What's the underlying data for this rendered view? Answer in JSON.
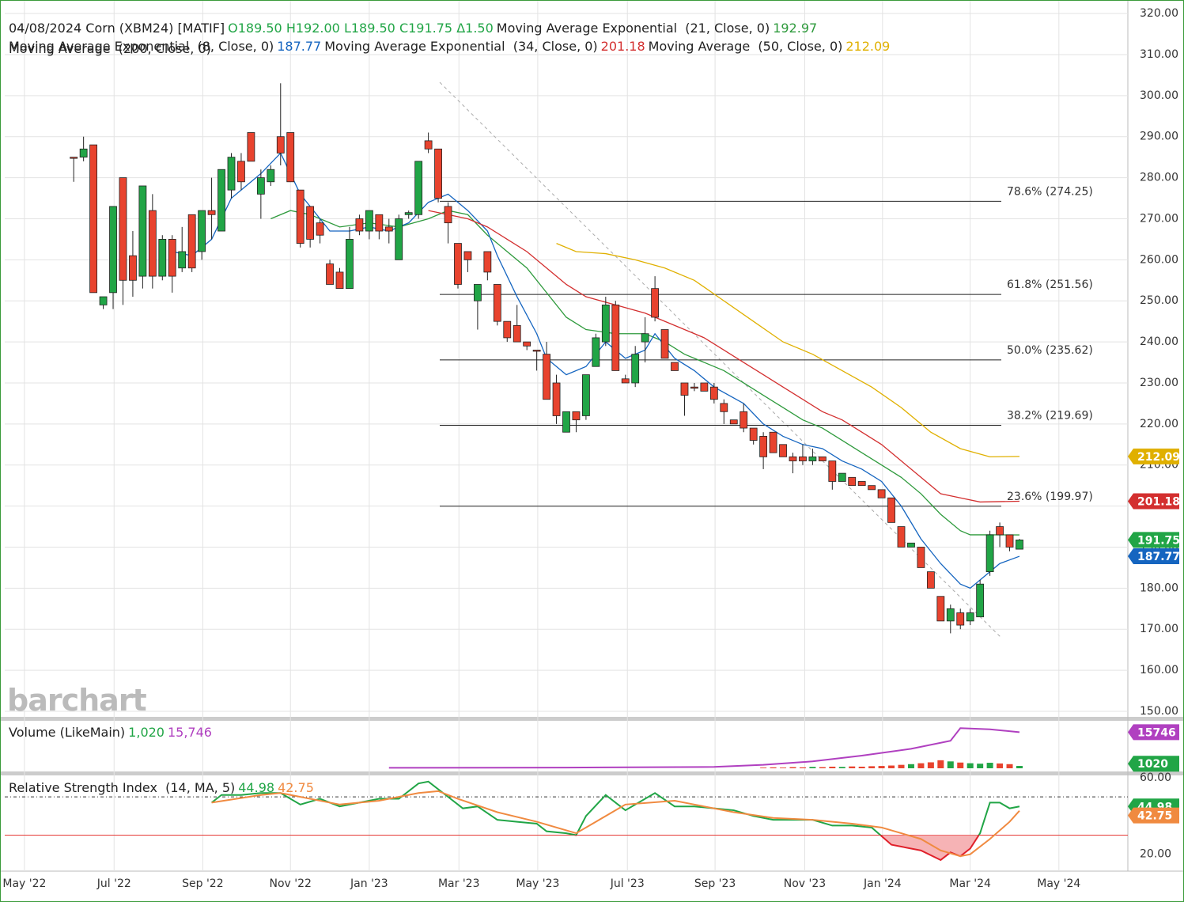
{
  "chart_data": {
    "type": "candlestick",
    "watermark": "barchart",
    "header": {
      "symbol": "04/08/2024 Corn (XBM24) [MATIF]",
      "ohlc_labels": [
        "O189.50",
        "H192.00",
        "L189.50",
        "C191.75",
        "Δ1.50"
      ],
      "extra": "Moving Average  (200, Close, 0)"
    },
    "open": [
      285,
      285,
      288,
      249,
      252,
      280,
      261,
      256,
      272,
      256,
      265,
      258,
      271,
      262,
      272,
      267,
      277,
      284,
      291,
      276,
      279,
      290,
      291,
      277,
      273,
      269,
      259,
      257,
      253,
      270,
      267,
      271,
      268,
      260,
      271,
      271,
      289,
      287,
      273,
      264,
      262,
      250,
      262,
      254,
      245,
      244,
      240,
      238,
      237,
      230,
      218,
      223,
      222,
      234,
      240,
      249,
      231,
      230,
      240,
      253,
      243,
      235,
      230,
      229,
      230,
      229,
      225,
      221,
      223,
      219,
      217,
      218,
      215,
      212,
      212,
      211,
      212,
      211,
      206,
      207,
      206,
      205,
      204,
      202,
      195,
      190,
      190,
      184,
      178,
      172,
      174,
      172,
      173,
      184,
      195,
      193,
      189.5
    ],
    "high": [
      285,
      290,
      288,
      251,
      273,
      280,
      267,
      278,
      276,
      266,
      266,
      268,
      271,
      272,
      280,
      282,
      286,
      286,
      291,
      282,
      283,
      303,
      291,
      277,
      273,
      270,
      260,
      258,
      268,
      271,
      272,
      271,
      270,
      271,
      272,
      284,
      291,
      287,
      274,
      264,
      262,
      254,
      262,
      254,
      245,
      249,
      240,
      238,
      240,
      232,
      223,
      223,
      232,
      242,
      251,
      250,
      232,
      239,
      246,
      256,
      243,
      235,
      230,
      230,
      230,
      230,
      226,
      221,
      225,
      219,
      218,
      218,
      215,
      213,
      215,
      214,
      212,
      211,
      208,
      207,
      206,
      205,
      204,
      202,
      195,
      191,
      190,
      184,
      178,
      176,
      175,
      175,
      182,
      194,
      196,
      193,
      192
    ],
    "low": [
      279,
      284,
      252,
      248,
      248,
      249,
      251,
      253,
      253,
      255,
      252,
      257,
      257,
      260,
      265,
      267,
      275,
      277,
      284,
      270,
      278,
      283,
      279,
      263,
      263,
      264,
      254,
      253,
      253,
      266,
      265,
      265,
      264,
      260,
      270,
      270,
      286,
      274,
      264,
      253,
      257,
      243,
      255,
      244,
      240,
      240,
      238,
      233,
      226,
      220,
      218,
      218,
      221,
      234,
      239,
      233,
      230,
      229,
      235,
      245,
      236,
      233,
      222,
      228,
      228,
      225,
      220,
      220,
      218,
      215,
      209,
      213,
      212,
      208,
      210,
      210,
      211,
      204,
      206,
      205,
      205,
      204,
      202,
      196,
      190,
      190,
      185,
      180,
      172,
      169,
      170,
      171,
      173,
      183,
      190,
      189,
      189.5
    ],
    "close": [
      285,
      287,
      252,
      251,
      273,
      255,
      255,
      278,
      256,
      265,
      256,
      262,
      258,
      272,
      271,
      282,
      285,
      279,
      284,
      280,
      282,
      286,
      279,
      264,
      265,
      266,
      254,
      253,
      265,
      267,
      272,
      267,
      267,
      270,
      271.5,
      284,
      287,
      275,
      269,
      254,
      260,
      254,
      257,
      245,
      241,
      240,
      239,
      238,
      226,
      222,
      223,
      221,
      232,
      241,
      249,
      233,
      230,
      237,
      242,
      246,
      236,
      233,
      227,
      229,
      228,
      226,
      223,
      220,
      219,
      216,
      212,
      213,
      212,
      211,
      211,
      212,
      211,
      206,
      208,
      205,
      205,
      204,
      202,
      196,
      190,
      191,
      185,
      180,
      172,
      175,
      171,
      174,
      181,
      193,
      193,
      190,
      191.75
    ],
    "up_color": "#21a546",
    "down_color": "#e8432e",
    "xlim": [
      -7,
      107
    ],
    "xticks": [
      {
        "value": -5,
        "label": "May '22"
      },
      {
        "value": 4.1,
        "label": "Jul '22"
      },
      {
        "value": 13.1,
        "label": "Sep '22"
      },
      {
        "value": 22,
        "label": "Nov '22"
      },
      {
        "value": 30,
        "label": "Jan '23"
      },
      {
        "value": 39.1,
        "label": "Mar '23"
      },
      {
        "value": 47.1,
        "label": "May '23"
      },
      {
        "value": 56.2,
        "label": "Jul '23"
      },
      {
        "value": 65.1,
        "label": "Sep '23"
      },
      {
        "value": 74.2,
        "label": "Nov '23"
      },
      {
        "value": 82.1,
        "label": "Jan '24"
      },
      {
        "value": 91,
        "label": "Mar '24"
      },
      {
        "value": 100,
        "label": "May '24"
      }
    ],
    "ylim": [
      148.65,
      323.1
    ],
    "yticks": [
      {
        "value": 150,
        "label": "150.00"
      },
      {
        "value": 160,
        "label": "160.00"
      },
      {
        "value": 170,
        "label": "170.00"
      },
      {
        "value": 180,
        "label": "180.00"
      },
      {
        "value": 190,
        "label": "190.00"
      },
      {
        "value": 200,
        "label": "200.00"
      },
      {
        "value": 210,
        "label": "210.00"
      },
      {
        "value": 220,
        "label": "220.00"
      },
      {
        "value": 230,
        "label": "230.00"
      },
      {
        "value": 240,
        "label": "240.00"
      },
      {
        "value": 250,
        "label": "250.00"
      },
      {
        "value": 260,
        "label": "260.00"
      },
      {
        "value": 270,
        "label": "270.00"
      },
      {
        "value": 280,
        "label": "280.00"
      },
      {
        "value": 290,
        "label": "290.00"
      },
      {
        "value": 300,
        "label": "300.00"
      },
      {
        "value": 310,
        "label": "310.00"
      },
      {
        "value": 320,
        "label": "320.00"
      }
    ],
    "grid": true,
    "fib_levels": [
      {
        "label": "78.6% (274.25)",
        "value": 274.25
      },
      {
        "label": "61.8% (251.56)",
        "value": 251.56
      },
      {
        "label": "50.0% (235.62)",
        "value": 235.62
      },
      {
        "label": "38.2% (219.69)",
        "value": 219.69
      },
      {
        "label": "23.6% (199.97)",
        "value": 199.97
      }
    ],
    "series": [
      {
        "name": "Moving Average Exponential  (21, Close, 0)",
        "color": "#2e9a3c",
        "x": [
          20,
          22,
          24,
          27,
          30,
          33,
          36,
          38,
          40,
          42,
          44,
          46,
          48,
          50,
          52,
          55,
          58,
          60,
          62,
          64,
          66,
          68,
          70,
          72,
          74,
          76,
          78,
          80,
          82,
          84,
          86,
          88,
          90,
          91,
          93,
          96
        ],
        "values": [
          270,
          272,
          271,
          268,
          269,
          268,
          270,
          272,
          271,
          266,
          262,
          258,
          252,
          246,
          243,
          242,
          242,
          240,
          237,
          235,
          233,
          230,
          227,
          224,
          221,
          219,
          216,
          213,
          210,
          207,
          203,
          198,
          194,
          193,
          193,
          192.97
        ]
      },
      {
        "name": "Moving Average Exponential  (8, Close, 0)",
        "color": "#1565c0",
        "x": [
          10,
          12,
          14,
          16,
          19,
          21,
          23,
          26,
          28,
          30,
          32,
          34,
          36,
          38,
          40,
          42,
          43,
          45,
          47,
          48,
          50,
          52,
          54,
          56,
          58,
          59,
          61,
          63,
          65,
          68,
          70,
          72,
          74,
          76,
          78,
          80,
          82,
          84,
          86,
          88,
          90,
          91,
          92,
          94,
          96
        ],
        "values": [
          262,
          261,
          265,
          275,
          281,
          286,
          276,
          267,
          267,
          268,
          267,
          269,
          274,
          276,
          272,
          267,
          261,
          251,
          242,
          236,
          232,
          234,
          240,
          236,
          238,
          242,
          236,
          233,
          229,
          225,
          220,
          217,
          215,
          214,
          211,
          209,
          206,
          200,
          192,
          186,
          181,
          180,
          182,
          186,
          187.77
        ]
      },
      {
        "name": "Moving Average Exponential  (34, Close, 0)",
        "color": "#d32f2f",
        "x": [
          36,
          38,
          40,
          42,
          44,
          46,
          48,
          50,
          52,
          55,
          58,
          60,
          62,
          64,
          66,
          68,
          70,
          72,
          74,
          76,
          78,
          80,
          82,
          84,
          86,
          88,
          90,
          92,
          96
        ],
        "values": [
          272,
          271,
          270,
          268,
          265,
          262,
          258,
          254,
          251,
          249,
          247,
          245,
          243,
          241,
          238,
          235,
          232,
          229,
          226,
          223,
          221,
          218,
          215,
          211,
          207,
          203,
          202,
          201,
          201.18
        ]
      },
      {
        "name": "Moving Average  (50, Close, 0)",
        "color": "#e0b000",
        "x": [
          49,
          51,
          54,
          57,
          60,
          63,
          66,
          69,
          72,
          75,
          78,
          81,
          84,
          87,
          90,
          93,
          96
        ],
        "values": [
          264,
          262,
          261.5,
          260,
          258,
          255,
          250,
          245,
          240,
          237,
          233,
          229,
          224,
          218,
          214,
          212,
          212.09
        ]
      }
    ],
    "volume": {
      "title": "Volume (LikeMain)",
      "ylim": [
        0,
        20000
      ],
      "bars": {
        "x": [
          70,
          71,
          72,
          73,
          74,
          75,
          76,
          77,
          78,
          79,
          80,
          81,
          82,
          83,
          84,
          85,
          86,
          87,
          88,
          89,
          90,
          91,
          92,
          93,
          94,
          95,
          96
        ],
        "values": [
          300,
          400,
          300,
          500,
          400,
          600,
          500,
          700,
          600,
          800,
          700,
          900,
          1000,
          1200,
          1500,
          1800,
          2200,
          2600,
          3500,
          3000,
          2500,
          2200,
          2000,
          2400,
          2100,
          1800,
          1020
        ],
        "value_labels": {
          "26": "1,020"
        }
      },
      "ma": {
        "color": "#b040c0",
        "x": [
          32,
          50,
          65,
          70,
          75,
          80,
          85,
          89,
          90,
          93,
          96
        ],
        "values": [
          200,
          300,
          600,
          1500,
          3000,
          5500,
          8500,
          12000,
          17500,
          17000,
          15746
        ],
        "value_labels": {
          "10": "15,746"
        }
      }
    },
    "rsi": {
      "title": "Relative Strength Index  (14, MA, 5)",
      "ylim": [
        11.2,
        60.8
      ],
      "yticks": [
        {
          "value": 60,
          "label": "60.00"
        },
        {
          "value": 20,
          "label": "20.00"
        }
      ],
      "ref_lines": [
        50,
        30
      ],
      "line": {
        "color": "#21a546",
        "x": [
          14,
          15,
          17,
          19,
          21,
          23,
          25,
          27,
          29,
          31,
          33,
          35,
          36,
          38,
          39.5,
          41,
          43,
          45,
          47,
          48,
          50,
          51,
          52,
          54,
          56,
          59,
          61,
          63,
          65,
          67,
          69,
          71,
          73,
          75,
          77,
          79,
          81,
          83,
          84,
          86,
          88,
          89,
          90,
          91,
          92,
          93,
          94,
          95,
          96
        ],
        "values": [
          47,
          51,
          51,
          52,
          52,
          46,
          49,
          45,
          47,
          49,
          49,
          57,
          58,
          50,
          44,
          45,
          38,
          37,
          36,
          32,
          31,
          30,
          40,
          51,
          43,
          52,
          45,
          45,
          44,
          43,
          40,
          38,
          38,
          38,
          35,
          35,
          34,
          25,
          24,
          22,
          17,
          21,
          19,
          23,
          31,
          47,
          47,
          44,
          44.98
        ]
      },
      "ma": {
        "color": "#f08a40",
        "x": [
          14,
          19,
          21,
          23,
          27,
          31,
          35,
          37,
          39,
          43,
          47,
          51,
          53,
          56,
          61,
          63,
          67,
          71,
          75,
          79,
          82,
          84,
          86,
          88,
          90,
          91,
          93,
          95,
          96
        ],
        "values": [
          47,
          51,
          52,
          50,
          46,
          48,
          52,
          53,
          49,
          42,
          37,
          31,
          37,
          46,
          48,
          46,
          42,
          39,
          38,
          36,
          34,
          31,
          28,
          22,
          19,
          20,
          28,
          37,
          42.75
        ]
      }
    }
  }
}
